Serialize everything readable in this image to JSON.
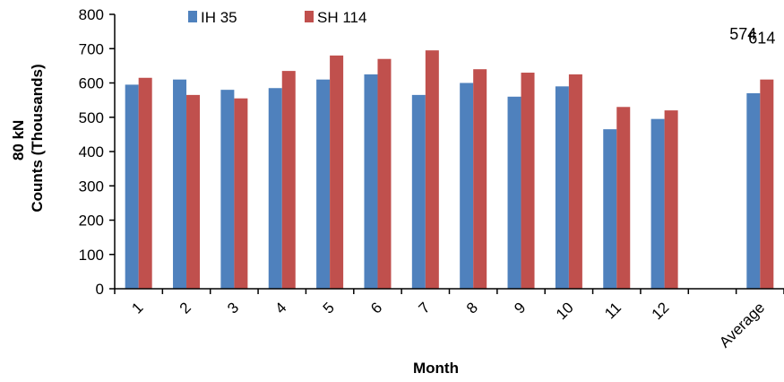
{
  "chart_data": {
    "type": "bar",
    "title": "",
    "xlabel": "Month",
    "ylabel": [
      "80 kN",
      "Counts (Thousands)"
    ],
    "ylim": [
      0,
      800
    ],
    "yticks": [
      0,
      100,
      200,
      300,
      400,
      500,
      600,
      700,
      800
    ],
    "categories": [
      "1",
      "2",
      "3",
      "4",
      "5",
      "6",
      "7",
      "8",
      "9",
      "10",
      "11",
      "12",
      "",
      "Average"
    ],
    "series": [
      {
        "name": "IH 35",
        "color": "#4F81BD",
        "values": [
          595,
          610,
          580,
          585,
          610,
          625,
          565,
          600,
          560,
          590,
          465,
          495,
          null,
          570
        ]
      },
      {
        "name": "SH 114",
        "color": "#C0504D",
        "values": [
          615,
          565,
          555,
          635,
          680,
          670,
          695,
          640,
          630,
          625,
          530,
          520,
          null,
          610
        ]
      }
    ],
    "annotations": [
      {
        "category": "Average",
        "series": "IH 35",
        "text": "574"
      },
      {
        "category": "Average",
        "series": "SH 114",
        "text": "614"
      }
    ],
    "legend": {
      "placement": "top-left",
      "entries": [
        "IH 35",
        "SH 114"
      ]
    },
    "grid": false
  }
}
